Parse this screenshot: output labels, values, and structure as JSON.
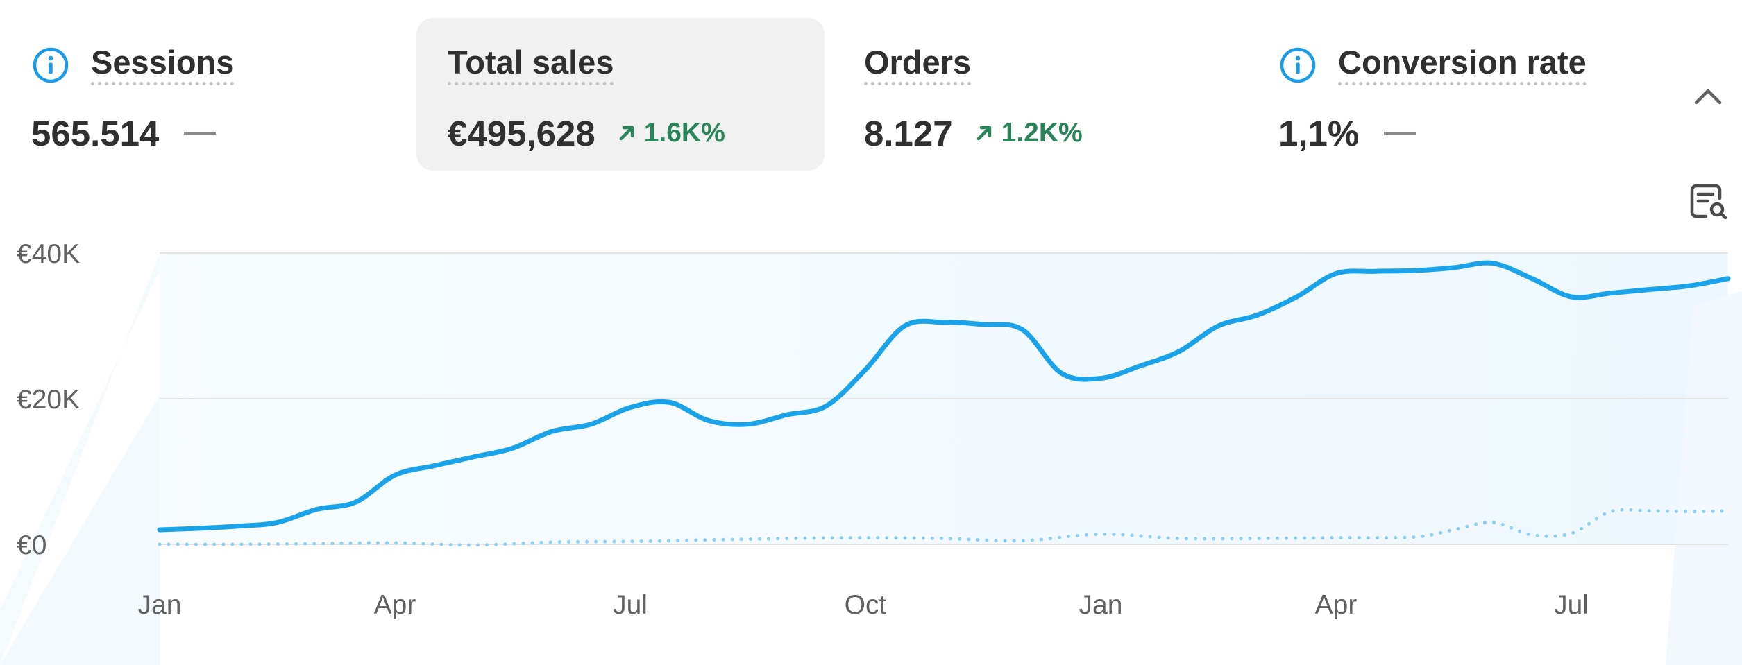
{
  "metrics": [
    {
      "label": "Sessions",
      "value": "565.514",
      "change": "",
      "icon": "info-icon"
    },
    {
      "label": "Total sales",
      "value": "€495,628",
      "change": "1.6K%",
      "icon": "arrow-up-right-icon"
    },
    {
      "label": "Orders",
      "value": "8.127",
      "change": "1.2K%",
      "icon": "arrow-up-right-icon"
    },
    {
      "label": "Conversion rate",
      "value": "1,1%",
      "change": "",
      "icon": "info-icon"
    }
  ],
  "controls": {
    "collapse_icon": "chevron-up-icon",
    "search_icon": "chart-search-icon"
  },
  "colors": {
    "accent": "#1aa3e8",
    "positive": "#29845a",
    "active_card": "#f1f1f1",
    "info": "#1a9ce8"
  },
  "chart_data": {
    "type": "line",
    "title": "",
    "xlabel": "",
    "ylabel": "",
    "x_tick_labels": [
      "Jan",
      "Apr",
      "Jul",
      "Oct",
      "Jan",
      "Apr",
      "Jul"
    ],
    "y_tick_labels": [
      "€40K",
      "€20K",
      "€0"
    ],
    "y_ticks": [
      40000,
      20000,
      0
    ],
    "ylim": [
      0,
      40000
    ],
    "x_range": [
      0,
      20
    ],
    "grid": true,
    "series": [
      {
        "name": "",
        "style": "solid",
        "x": [
          0,
          0.5,
          1,
          1.5,
          2,
          2.5,
          3,
          3.5,
          4,
          4.5,
          5,
          5.5,
          6,
          6.5,
          7,
          7.5,
          8,
          8.5,
          9,
          9.5,
          10,
          10.5,
          11,
          11.5,
          12,
          12.5,
          13,
          13.5,
          14,
          14.5,
          15,
          15.5,
          16,
          16.5,
          17,
          17.5,
          18,
          18.5,
          19,
          19.5,
          20
        ],
        "values": [
          2000,
          2200,
          2500,
          3000,
          4800,
          5800,
          9500,
          10800,
          12000,
          13200,
          15500,
          16500,
          18800,
          19500,
          17000,
          16500,
          17800,
          19000,
          24000,
          30000,
          30500,
          30200,
          29500,
          23500,
          22800,
          24500,
          26500,
          30000,
          31500,
          34000,
          37200,
          37500,
          37600,
          38000,
          38600,
          36500,
          34000,
          34500,
          35000,
          35500,
          36500
        ]
      },
      {
        "name": "",
        "style": "dotted",
        "x": [
          0,
          1,
          2,
          3,
          4,
          5,
          6,
          7,
          8,
          9,
          10,
          11,
          12,
          13,
          14,
          15,
          16,
          16.5,
          17,
          17.5,
          18,
          18.5,
          19,
          19.5,
          20
        ],
        "values": [
          0,
          0,
          100,
          200,
          -100,
          300,
          400,
          600,
          800,
          900,
          800,
          500,
          1400,
          800,
          800,
          900,
          1000,
          2000,
          3000,
          1300,
          1500,
          4500,
          4600,
          4500,
          4600
        ]
      }
    ]
  }
}
